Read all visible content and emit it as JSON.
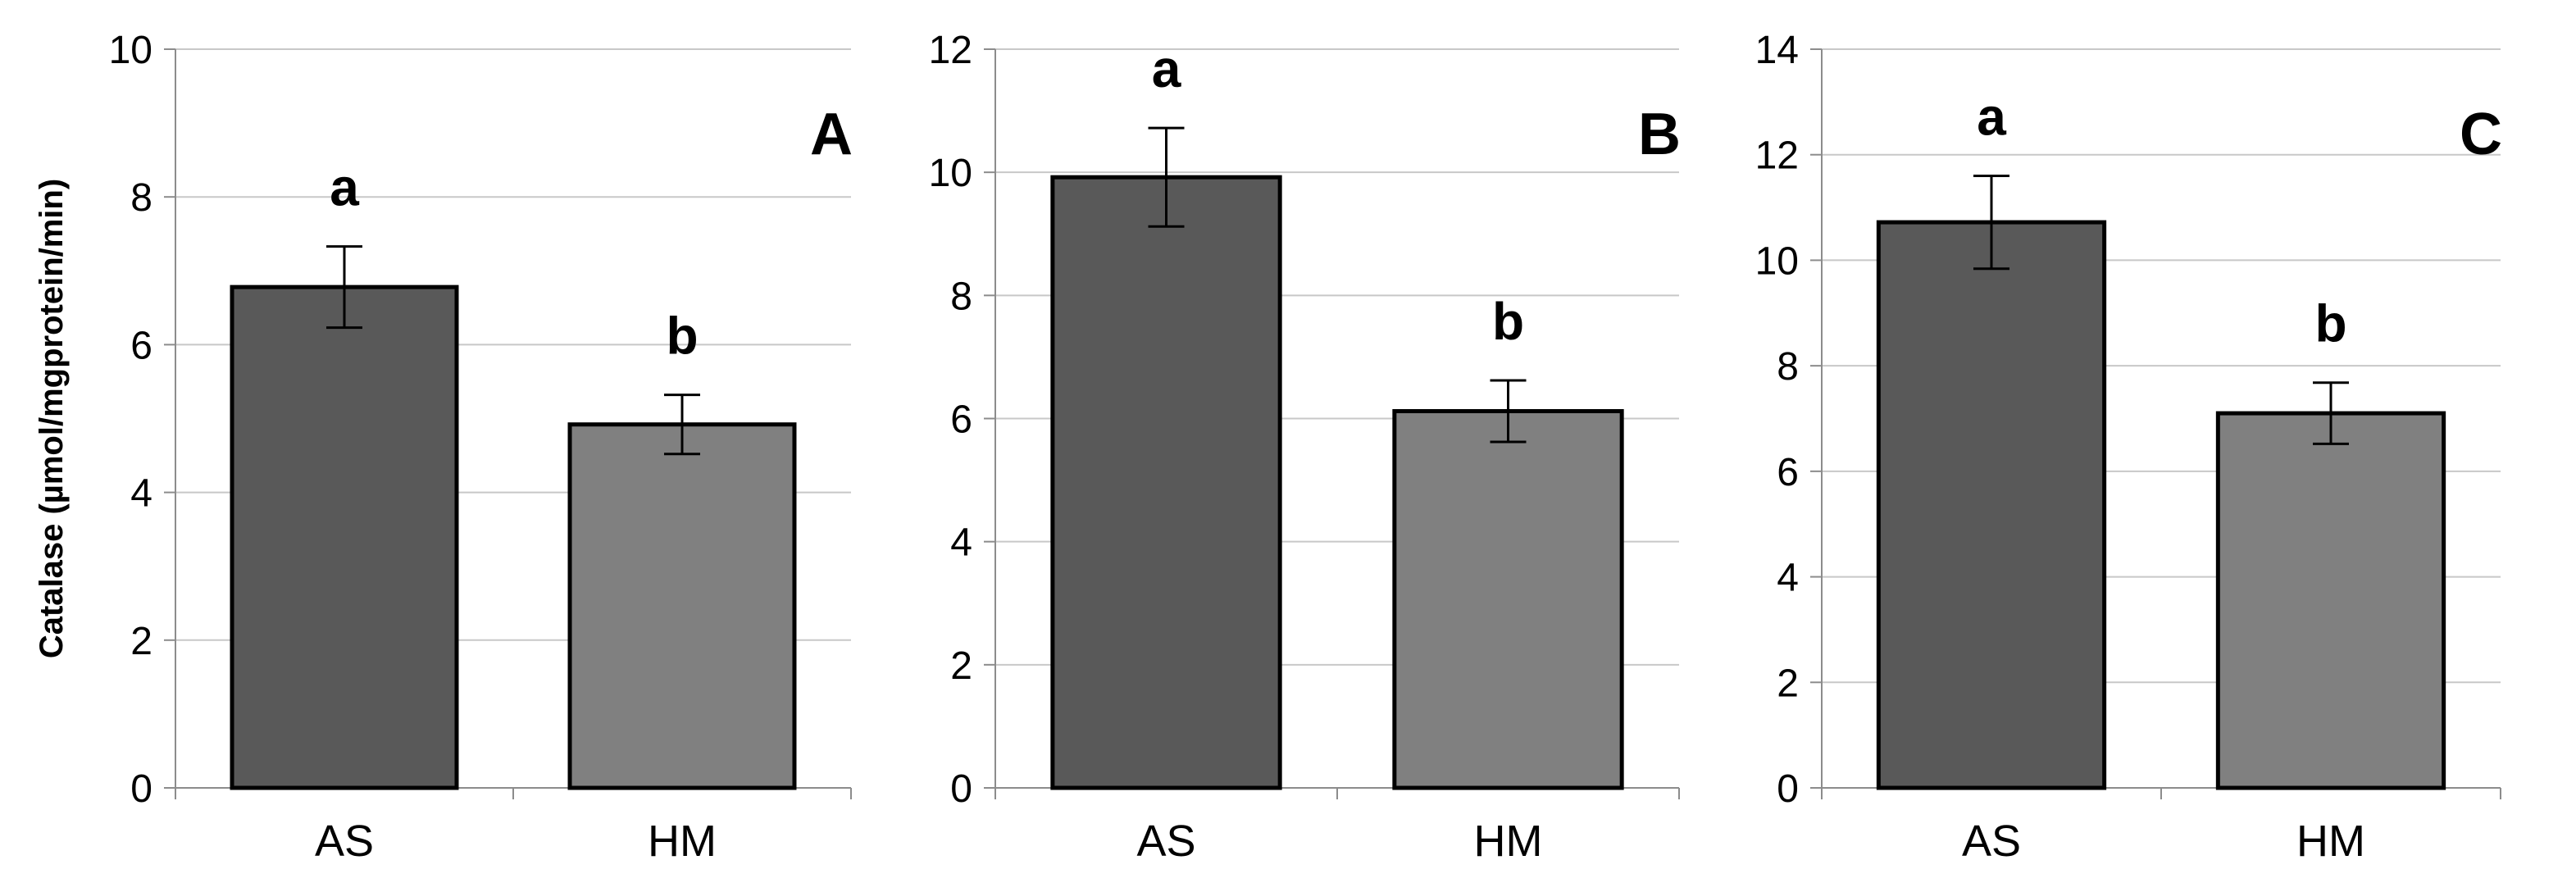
{
  "chart_data": [
    {
      "type": "bar",
      "panel_label": "A",
      "categories": [
        "AS",
        "HM"
      ],
      "values": [
        6.78,
        4.92
      ],
      "errors": [
        0.55,
        0.4
      ],
      "significance": [
        "a",
        "b"
      ],
      "bar_colors": [
        "#595959",
        "#808080"
      ],
      "ylabel": "Catalase (µmol/mgprotein/min)",
      "ylim": [
        0,
        10
      ],
      "yticks": [
        0,
        2,
        4,
        6,
        8,
        10
      ],
      "grid": true
    },
    {
      "type": "bar",
      "panel_label": "B",
      "categories": [
        "AS",
        "HM"
      ],
      "values": [
        9.92,
        6.12
      ],
      "errors": [
        0.8,
        0.5
      ],
      "significance": [
        "a",
        "b"
      ],
      "bar_colors": [
        "#595959",
        "#808080"
      ],
      "ylim": [
        0,
        12
      ],
      "yticks": [
        0,
        2,
        4,
        6,
        8,
        10,
        12
      ],
      "grid": true
    },
    {
      "type": "bar",
      "panel_label": "C",
      "categories": [
        "AS",
        "HM"
      ],
      "values": [
        10.72,
        7.1
      ],
      "errors": [
        0.88,
        0.58
      ],
      "significance": [
        "a",
        "b"
      ],
      "bar_colors": [
        "#595959",
        "#808080"
      ],
      "ylim": [
        0,
        14
      ],
      "yticks": [
        0,
        2,
        4,
        6,
        8,
        10,
        12,
        14
      ],
      "grid": true
    }
  ]
}
